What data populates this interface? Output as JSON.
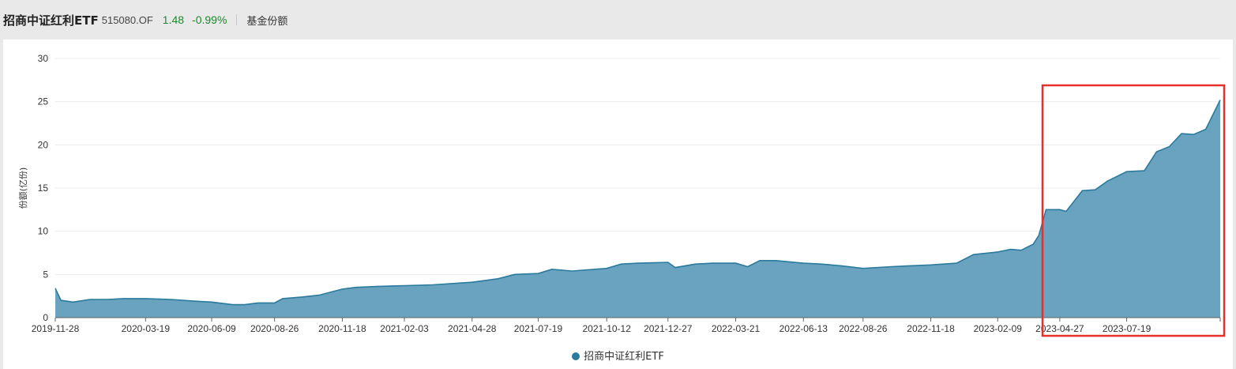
{
  "header": {
    "fund_name": "招商中证红利ETF",
    "fund_code": "515080.OF",
    "nav": "1.48",
    "change": "-0.99%",
    "metric_tab": "基金份额"
  },
  "colors": {
    "area_fill": "#6aa3c0",
    "line": "#2a7a9e",
    "highlight_box": "#e8302a",
    "gain": "#1b8a2b"
  },
  "chart_data": {
    "type": "area",
    "title": "",
    "ylabel": "份额(亿份)",
    "xlabel": "",
    "ylim": [
      0,
      30
    ],
    "yticks": [
      0,
      5,
      10,
      15,
      20,
      25,
      30
    ],
    "grid": true,
    "legend_position": "bottom-center",
    "xticks": [
      "2019-11-28",
      "2020-03-19",
      "2020-06-09",
      "2020-08-26",
      "2020-11-18",
      "2021-02-03",
      "2021-04-28",
      "2021-07-19",
      "2021-10-12",
      "2021-12-27",
      "2022-03-21",
      "2022-06-13",
      "2022-08-26",
      "2022-11-18",
      "2023-02-09",
      "2023-04-27",
      "2023-07-19"
    ],
    "series": [
      {
        "name": "招商中证红利ETF",
        "x": [
          "2019-11-28",
          "2019-12-05",
          "2019-12-20",
          "2020-01-10",
          "2020-02-01",
          "2020-02-20",
          "2020-03-19",
          "2020-04-20",
          "2020-05-20",
          "2020-06-09",
          "2020-07-05",
          "2020-07-20",
          "2020-08-05",
          "2020-08-26",
          "2020-09-05",
          "2020-09-30",
          "2020-10-20",
          "2020-11-18",
          "2020-12-05",
          "2020-12-30",
          "2021-02-03",
          "2021-03-10",
          "2021-04-28",
          "2021-05-30",
          "2021-06-20",
          "2021-07-19",
          "2021-08-05",
          "2021-08-30",
          "2021-10-12",
          "2021-10-30",
          "2021-11-20",
          "2021-12-27",
          "2022-01-05",
          "2022-01-30",
          "2022-02-20",
          "2022-03-21",
          "2022-04-05",
          "2022-04-20",
          "2022-05-10",
          "2022-06-13",
          "2022-07-05",
          "2022-07-30",
          "2022-08-26",
          "2022-09-30",
          "2022-11-18",
          "2022-12-20",
          "2023-01-10",
          "2023-02-09",
          "2023-02-25",
          "2023-03-10",
          "2023-03-25",
          "2023-04-01",
          "2023-04-10",
          "2023-04-27",
          "2023-05-05",
          "2023-05-25",
          "2023-06-10",
          "2023-06-25",
          "2023-07-19",
          "2023-08-10",
          "2023-08-25",
          "2023-09-10",
          "2023-09-25",
          "2023-10-10",
          "2023-10-25",
          "2023-11-12"
        ],
        "values": [
          3.4,
          2.0,
          1.8,
          2.1,
          2.1,
          2.2,
          2.2,
          2.1,
          1.9,
          1.8,
          1.5,
          1.5,
          1.7,
          1.7,
          2.2,
          2.4,
          2.6,
          3.3,
          3.5,
          3.6,
          3.7,
          3.8,
          4.1,
          4.5,
          5.0,
          5.1,
          5.6,
          5.4,
          5.7,
          6.2,
          6.3,
          6.4,
          5.8,
          6.2,
          6.3,
          6.3,
          5.9,
          6.6,
          6.6,
          6.3,
          6.2,
          6.0,
          5.7,
          5.9,
          6.1,
          6.3,
          7.3,
          7.6,
          7.9,
          7.8,
          8.5,
          9.5,
          12.5,
          12.5,
          12.3,
          14.7,
          14.8,
          15.8,
          16.9,
          17.0,
          19.2,
          19.8,
          21.3,
          21.2,
          21.8,
          25.2
        ]
      }
    ]
  }
}
